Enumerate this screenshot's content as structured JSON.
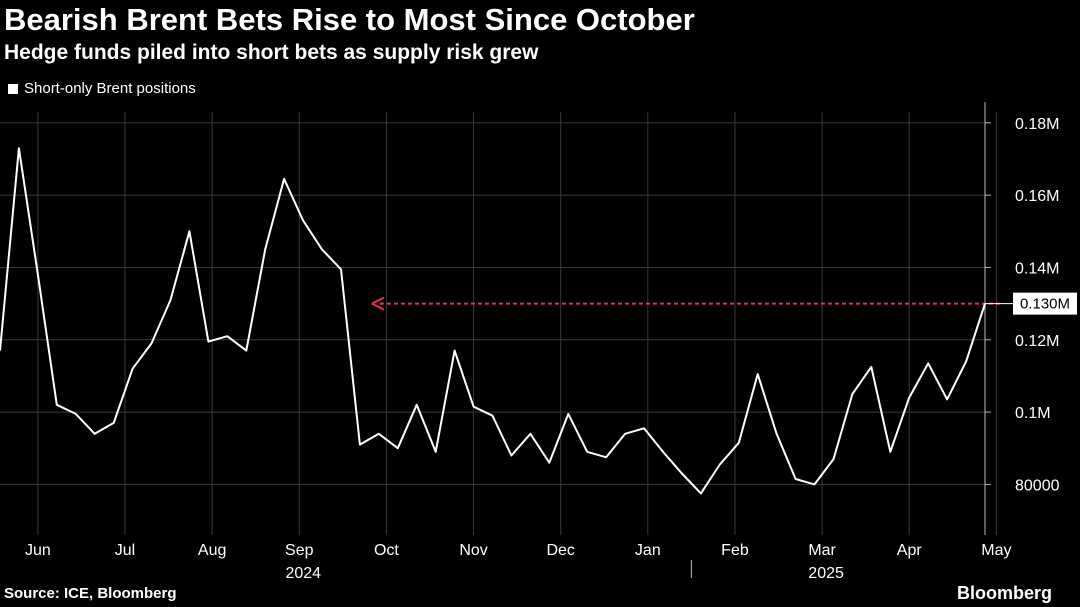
{
  "header": {
    "title": "Bearish Brent Bets Rise to Most Since October",
    "subtitle": "Hedge funds piled into short bets as supply risk grew"
  },
  "footer": {
    "source": "Source: ICE, Bloomberg",
    "brand": "Bloomberg"
  },
  "colors": {
    "background": "#000000",
    "line": "#ffffff",
    "grid": "#3a3a3a",
    "reference_arrow": "#e0335a"
  },
  "chart_data": {
    "type": "line",
    "legend": "Short-only Brent positions",
    "legend_position": "top-left",
    "grid": true,
    "ylim": [
      66000,
      183000
    ],
    "y_ticks": [
      {
        "value": 80000,
        "label": "80000"
      },
      {
        "value": 100000,
        "label": "0.1M"
      },
      {
        "value": 120000,
        "label": "0.12M"
      },
      {
        "value": 140000,
        "label": "0.14M"
      },
      {
        "value": 160000,
        "label": "0.16M"
      },
      {
        "value": 180000,
        "label": "0.18M"
      }
    ],
    "x_ticks": [
      {
        "index": 2,
        "label": "Jun"
      },
      {
        "index": 6.6,
        "label": "Jul"
      },
      {
        "index": 11.2,
        "label": "Aug"
      },
      {
        "index": 15.8,
        "label": "Sep"
      },
      {
        "index": 20.4,
        "label": "Oct"
      },
      {
        "index": 25,
        "label": "Nov"
      },
      {
        "index": 29.6,
        "label": "Dec"
      },
      {
        "index": 34.2,
        "label": "Jan"
      },
      {
        "index": 38.8,
        "label": "Feb"
      },
      {
        "index": 43.4,
        "label": "Mar"
      },
      {
        "index": 48,
        "label": "Apr"
      },
      {
        "index": 52.6,
        "label": "May"
      }
    ],
    "year_labels": [
      {
        "index": 15.8,
        "label": "2024"
      },
      {
        "index": 43.4,
        "label": "2025"
      }
    ],
    "series": [
      {
        "values": [
          117000,
          173000,
          138000,
          102000,
          99500,
          94000,
          97000,
          112000,
          119000,
          131000,
          150000,
          119500,
          121000,
          117000,
          145000,
          164500,
          153000,
          145000,
          139500,
          91000,
          94000,
          90000,
          102000,
          89000,
          117000,
          101500,
          99000,
          88000,
          94000,
          86000,
          99500,
          89000,
          87500,
          94000,
          95500,
          89000,
          83000,
          77500,
          85500,
          91500,
          110500,
          94000,
          81500,
          80000,
          87000,
          105000,
          112500,
          89000,
          104000,
          113500,
          103500,
          114000,
          130000
        ]
      }
    ],
    "callout": {
      "value": 130000,
      "label": "0.130M",
      "arrow_from_index": 52,
      "arrow_to_index": 19
    }
  }
}
